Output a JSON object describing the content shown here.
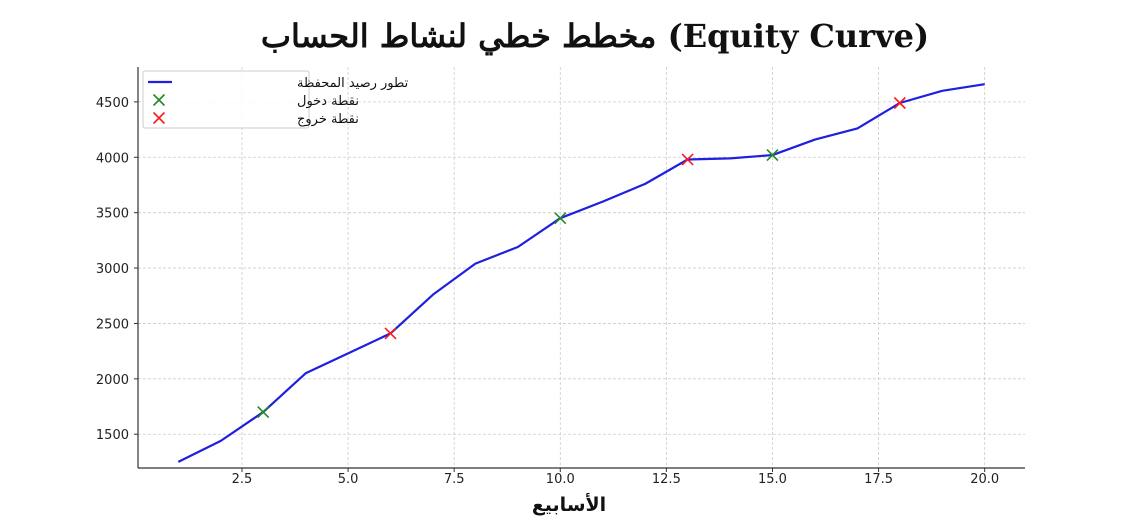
{
  "chart_data": {
    "type": "line",
    "title": "مخطط خطي لنشاط الحساب (Equity Curve)",
    "xlabel": "الأسابيع",
    "ylabel": "",
    "xlim": [
      0.05,
      20.95
    ],
    "ylim": [
      1195,
      4815
    ],
    "xticks": [
      2.5,
      5.0,
      7.5,
      10.0,
      12.5,
      15.0,
      17.5,
      20.0
    ],
    "xtick_labels": [
      "2.5",
      "5.0",
      "7.5",
      "10.0",
      "12.5",
      "15.0",
      "17.5",
      "20.0"
    ],
    "yticks": [
      1500,
      2000,
      2500,
      3000,
      3500,
      4000,
      4500
    ],
    "ytick_labels": [
      "1500",
      "2000",
      "2500",
      "3000",
      "3500",
      "4000",
      "4500"
    ],
    "grid": true,
    "legend_position": "top-left",
    "series": [
      {
        "name": "تطور رصيد المحفظة",
        "kind": "line",
        "color": "#1f1fe0",
        "x": [
          1,
          2,
          3,
          4,
          5,
          6,
          7,
          8,
          9,
          10,
          11,
          12,
          13,
          14,
          15,
          16,
          17,
          18,
          19,
          20
        ],
        "y": [
          1250,
          1440,
          1700,
          2050,
          2230,
          2410,
          2760,
          3040,
          3190,
          3450,
          3600,
          3760,
          3980,
          3990,
          4020,
          4160,
          4260,
          4490,
          4600,
          4660
        ]
      },
      {
        "name": "نقطة دخول",
        "kind": "marker",
        "marker": "x",
        "color": "#228b22",
        "x": [
          3,
          10,
          15
        ],
        "y": [
          1700,
          3450,
          4020
        ]
      },
      {
        "name": "نقطة خروج",
        "kind": "marker",
        "marker": "x",
        "color": "#ff1a1a",
        "x": [
          6,
          13,
          18
        ],
        "y": [
          2410,
          3980,
          4490
        ]
      }
    ]
  }
}
